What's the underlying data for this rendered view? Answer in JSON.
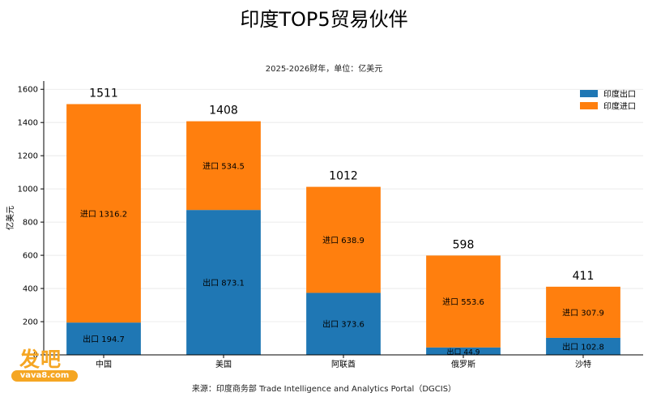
{
  "chart_data": {
    "type": "bar",
    "stacked": true,
    "title": "印度TOP5贸易伙伴",
    "subtitle": "2025-2026财年，单位：亿美元",
    "ylabel": "亿美元",
    "source": "来源：印度商务部 Trade Intelligence and Analytics Portal（DGCIS）",
    "categories": [
      "中国",
      "美国",
      "阿联酋",
      "俄罗斯",
      "沙特"
    ],
    "series": [
      {
        "name": "印度出口",
        "label_prefix": "出口",
        "color": "#1f77b4",
        "values": [
          194.7,
          873.1,
          373.6,
          44.9,
          102.8
        ]
      },
      {
        "name": "印度进口",
        "label_prefix": "进口",
        "color": "#ff7f0e",
        "values": [
          1316.2,
          534.5,
          638.9,
          553.6,
          307.9
        ]
      }
    ],
    "totals": [
      1511,
      1408,
      1012,
      598,
      411
    ],
    "ylim": [
      0,
      1650
    ],
    "yticks": [
      0,
      200,
      400,
      600,
      800,
      1000,
      1200,
      1400,
      1600
    ],
    "grid": true,
    "legend": "top-right"
  },
  "watermark": {
    "main": "发吧",
    "sub": "vava8.com"
  }
}
